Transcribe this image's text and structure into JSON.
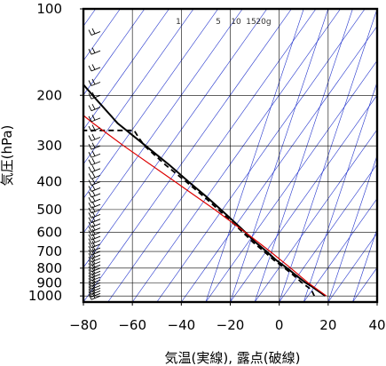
{
  "chart_data": {
    "type": "skew-t log-p sounding",
    "xlabel": "気温(実線), 露点(破線)",
    "ylabel": "気圧(hPa)",
    "xlim": [
      -80,
      40
    ],
    "ylim": [
      1050,
      100
    ],
    "y_scale": "log",
    "x_ticks": [
      -80,
      -60,
      -40,
      -20,
      0,
      20,
      40
    ],
    "x_tick_labels": [
      "−80",
      "−60",
      "−40",
      "−20",
      "0",
      "20",
      "40"
    ],
    "y_ticks": [
      100,
      200,
      300,
      400,
      500,
      600,
      700,
      800,
      900,
      1000
    ],
    "mixing_ratio_labels": [
      "1",
      "5",
      "10",
      "15",
      "20g"
    ],
    "grid": true,
    "colors": {
      "temperature": "#000000",
      "dewpoint": "#000000",
      "parcel": "#dd0000",
      "adiabats": "#2233cc",
      "grid": "#000000",
      "wind_barbs": "#000000"
    },
    "series": [
      {
        "style": "solid",
        "points": [
          [
            1000,
            19.5
          ],
          [
            975,
            18
          ],
          [
            950,
            16.5
          ],
          [
            925,
            15
          ],
          [
            900,
            13
          ],
          [
            850,
            10
          ],
          [
            800,
            7
          ],
          [
            750,
            3.5
          ],
          [
            700,
            0.5
          ],
          [
            650,
            -3
          ],
          [
            600,
            -6
          ],
          [
            550,
            -9.5
          ],
          [
            500,
            -13.5
          ],
          [
            450,
            -18
          ],
          [
            400,
            -23.5
          ],
          [
            350,
            -29.5
          ],
          [
            300,
            -37
          ],
          [
            250,
            -46
          ],
          [
            200,
            -53
          ],
          [
            175,
            -57
          ],
          [
            150,
            -63
          ],
          [
            130,
            -66
          ],
          [
            115,
            -69
          ],
          [
            100,
            -71
          ]
        ]
      },
      {
        "style": "dashed",
        "points": [
          [
            1000,
            15
          ],
          [
            950,
            14.5
          ],
          [
            900,
            11.5
          ],
          [
            850,
            9
          ],
          [
            800,
            6
          ],
          [
            750,
            2.5
          ],
          [
            700,
            -0.5
          ],
          [
            650,
            -4
          ],
          [
            600,
            -7
          ],
          [
            550,
            -10.5
          ],
          [
            500,
            -14.5
          ],
          [
            450,
            -19
          ],
          [
            400,
            -24.5
          ],
          [
            350,
            -31
          ],
          [
            300,
            -37.5
          ],
          [
            280,
            -39
          ],
          [
            265,
            -40
          ],
          [
            265,
            -72
          ]
        ]
      },
      {
        "style": "solid-red",
        "points": [
          [
            1000,
            20
          ],
          [
            900,
            14
          ],
          [
            800,
            8.5
          ],
          [
            700,
            2
          ],
          [
            600,
            -6
          ],
          [
            500,
            -16
          ],
          [
            400,
            -29
          ],
          [
            300,
            -46
          ],
          [
            250,
            -56
          ],
          [
            200,
            -67
          ],
          [
            175,
            -75
          ]
        ]
      }
    ]
  }
}
